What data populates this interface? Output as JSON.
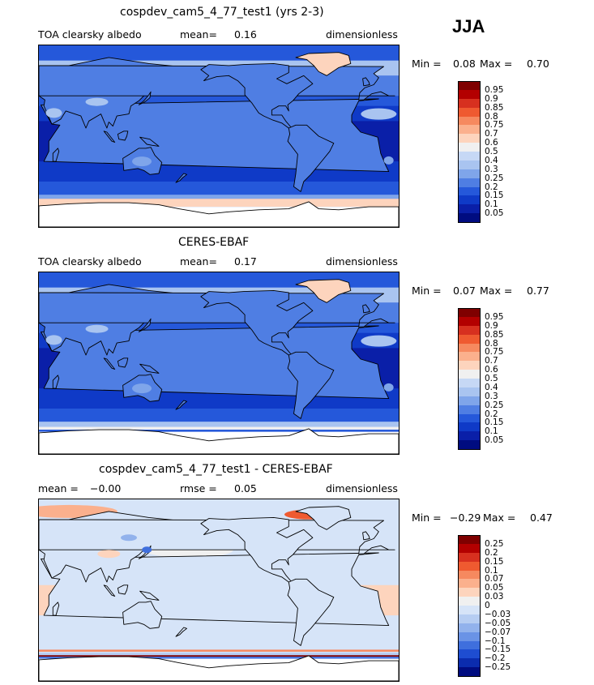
{
  "season": "JJA",
  "panels": [
    {
      "title": "cospdev_cam5_4_77_test1 (yrs 2-3)",
      "left_label": "TOA clearsky albedo",
      "mid_label": "mean=",
      "mid_value": "0.16",
      "units": "dimensionless",
      "min_label": "Min =",
      "min_value": "0.08",
      "max_label": "Max =",
      "max_value": "0.70",
      "colorbar_labels": [
        "0.95",
        "0.9",
        "0.85",
        "0.8",
        "0.75",
        "0.7",
        "0.6",
        "0.5",
        "0.4",
        "0.3",
        "0.25",
        "0.2",
        "0.15",
        "0.1",
        "0.05"
      ],
      "colorbar_colors": [
        "#7f0000",
        "#b30000",
        "#d7301f",
        "#ef5a30",
        "#f6895f",
        "#fbb08d",
        "#fdd4bd",
        "#f0f0f0",
        "#c6d8f5",
        "#a9c4f0",
        "#7fa5ea",
        "#4f7ee3",
        "#2558da",
        "#0f3ac7",
        "#0a1fa8",
        "#000c80"
      ],
      "map_style": "model"
    },
    {
      "title": "CERES-EBAF",
      "left_label": "TOA clearsky albedo",
      "mid_label": "mean=",
      "mid_value": "0.17",
      "units": "dimensionless",
      "min_label": "Min =",
      "min_value": "0.07",
      "max_label": "Max =",
      "max_value": "0.77",
      "colorbar_labels": [
        "0.95",
        "0.9",
        "0.85",
        "0.8",
        "0.75",
        "0.7",
        "0.6",
        "0.5",
        "0.4",
        "0.3",
        "0.25",
        "0.2",
        "0.15",
        "0.1",
        "0.05"
      ],
      "colorbar_colors": [
        "#7f0000",
        "#b30000",
        "#d7301f",
        "#ef5a30",
        "#f6895f",
        "#fbb08d",
        "#fdd4bd",
        "#f0f0f0",
        "#c6d8f5",
        "#a9c4f0",
        "#7fa5ea",
        "#4f7ee3",
        "#2558da",
        "#0f3ac7",
        "#0a1fa8",
        "#000c80"
      ],
      "map_style": "obs"
    },
    {
      "title": "cospdev_cam5_4_77_test1 - CERES-EBAF",
      "left_label": "mean =",
      "left_value": "−0.00",
      "mid_label": "rmse =",
      "mid_value": "0.05",
      "units": "dimensionless",
      "min_label": "Min =",
      "min_value": "−0.29",
      "max_label": "Max =",
      "max_value": "0.47",
      "colorbar_labels": [
        "0.25",
        "0.2",
        "0.15",
        "0.1",
        "0.07",
        "0.05",
        "0.03",
        "0",
        "−0.03",
        "−0.05",
        "−0.07",
        "−0.1",
        "−0.15",
        "−0.2",
        "−0.25"
      ],
      "colorbar_colors": [
        "#7f0000",
        "#b30000",
        "#d7301f",
        "#ef5a30",
        "#f6895f",
        "#fbb08d",
        "#fdd4bd",
        "#f0f0f0",
        "#d6e4f8",
        "#b6cdf2",
        "#92b2ec",
        "#6a93e6",
        "#3f6fdd",
        "#1e4dd1",
        "#0b2cae",
        "#000c80"
      ],
      "map_style": "diff"
    }
  ]
}
